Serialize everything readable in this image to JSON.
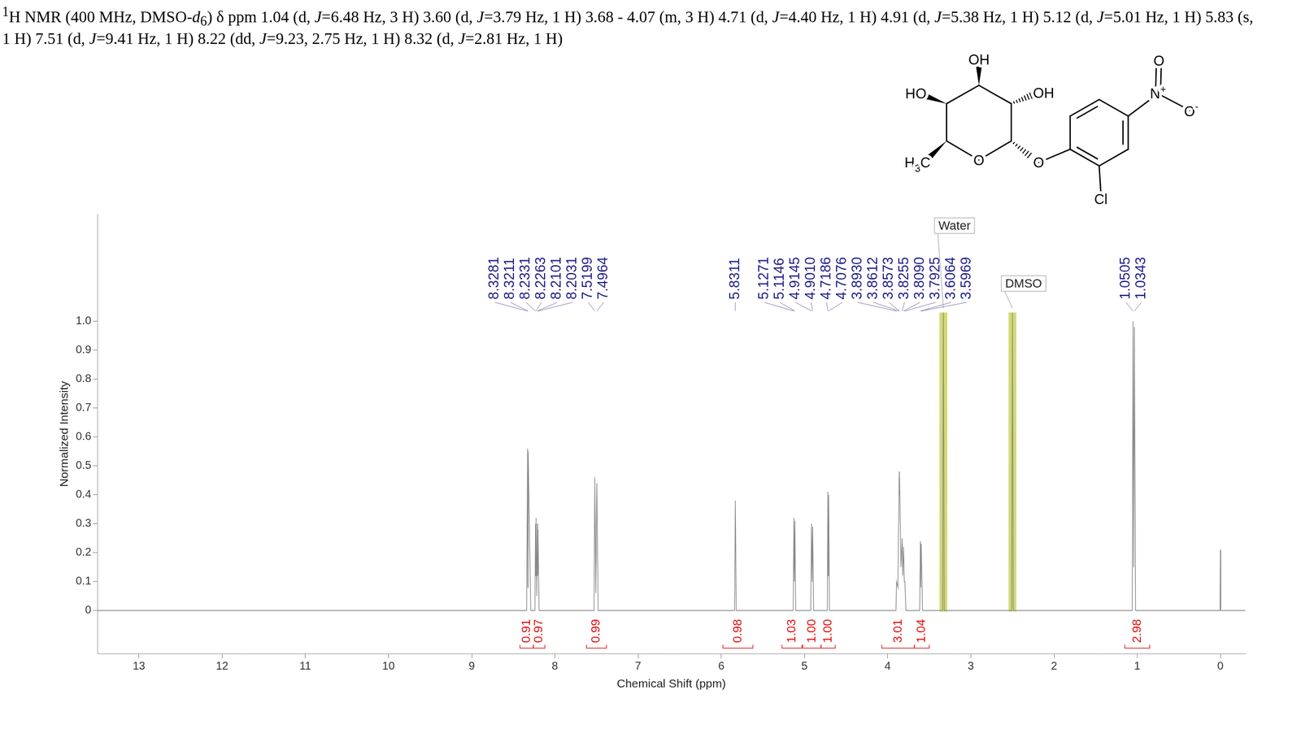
{
  "header": [
    {
      "sup": "1"
    },
    "H NMR (400 MHz, DMSO-",
    {
      "i": "d"
    },
    {
      "sub": "6"
    },
    ") δ ppm 1.04 (d, ",
    {
      "i": "J"
    },
    "=6.48 Hz, 3 H) 3.60 (d, ",
    {
      "i": "J"
    },
    "=3.79 Hz, 1 H) 3.68 - 4.07 (m, 3 H) 4.71 (d, ",
    {
      "i": "J"
    },
    "=4.40 Hz, 1 H) 4.91 (d, ",
    {
      "i": "J"
    },
    "=5.38 Hz, 1 H) 5.12 (d, ",
    {
      "i": "J"
    },
    "=5.01 Hz, 1 H) 5.83 (s, 1 H) 7.51 (d, ",
    {
      "i": "J"
    },
    "=9.41 Hz, 1 H) 8.22 (dd, ",
    {
      "i": "J"
    },
    "=9.23, 2.75 Hz, 1 H) 8.32 (d, ",
    {
      "i": "J"
    },
    "=2.81 Hz, 1 H)"
  ],
  "molecule": {
    "labels": [
      [
        "OH"
      ],
      [
        "HO"
      ],
      [
        "OH"
      ],
      [
        "H",
        {
          "sub": "3"
        },
        "C"
      ],
      [
        "O"
      ],
      [
        "O"
      ],
      [
        "N",
        {
          "sup": "+"
        }
      ],
      [
        "O"
      ],
      [
        "O",
        {
          "sup": "-"
        }
      ],
      [
        "Cl"
      ]
    ]
  },
  "chart_data": {
    "type": "line",
    "x_label": "Chemical Shift (ppm)",
    "y_label": "Normalized Intensity",
    "color": "#8a8a8a",
    "x": [
      13.5,
      8.34,
      8.328,
      8.3245,
      8.321,
      8.29,
      8.24,
      8.233,
      8.2297,
      8.226,
      8.218,
      8.21,
      8.2066,
      8.203,
      8.19,
      7.53,
      7.52,
      7.508,
      7.496,
      7.48,
      5.84,
      5.831,
      5.82,
      5.135,
      5.127,
      5.121,
      5.115,
      5.105,
      4.925,
      4.915,
      4.908,
      4.901,
      4.89,
      4.725,
      4.719,
      4.713,
      4.708,
      4.7,
      3.9,
      3.893,
      3.877,
      3.861,
      3.859,
      3.857,
      3.84,
      3.826,
      3.818,
      3.809,
      3.8,
      3.793,
      3.78,
      3.615,
      3.606,
      3.6015,
      3.597,
      3.58,
      3.34,
      3.33,
      3.32,
      2.51,
      2.5,
      2.49,
      1.06,
      1.0505,
      1.042,
      1.0343,
      1.02,
      0.005,
      0.0,
      -0.005,
      -0.3
    ],
    "values": [
      0,
      0,
      0.56,
      0.08,
      0.55,
      0,
      0,
      0.3,
      0.12,
      0.32,
      0.05,
      0.3,
      0.12,
      0.28,
      0,
      0,
      0.46,
      0.06,
      0.44,
      0,
      0,
      0.38,
      0,
      0,
      0.32,
      0.1,
      0.31,
      0,
      0,
      0.3,
      0.1,
      0.29,
      0,
      0,
      0.41,
      0.12,
      0.4,
      0,
      0,
      0.1,
      0.08,
      0.48,
      0.4,
      0.46,
      0.15,
      0.25,
      0.12,
      0.22,
      0.1,
      0.1,
      0,
      0,
      0.24,
      0.08,
      0.23,
      0,
      0,
      1.03,
      0,
      0,
      1.03,
      0,
      0,
      1.0,
      0.15,
      0.98,
      0,
      0,
      0.21,
      0,
      0
    ],
    "xlim": [
      13.5,
      -0.3
    ],
    "xticks": [
      13,
      12,
      11,
      10,
      9,
      8,
      7,
      6,
      5,
      4,
      3,
      2,
      1,
      0
    ],
    "ylim": [
      -0.15,
      1.37
    ],
    "yticks": [
      0,
      0.1,
      0.2,
      0.3,
      0.4,
      0.5,
      0.6,
      0.7,
      0.8,
      0.9,
      {
        "value": 1,
        "label": "1.0"
      }
    ],
    "grid": false,
    "peak_labels": [
      8.3281,
      8.3211,
      8.2331,
      8.2263,
      8.2101,
      8.2031,
      7.5199,
      7.4964,
      5.8311,
      5.1271,
      5.1146,
      4.9145,
      {
        "value": 4.901,
        "label": "4.9010"
      },
      4.7186,
      4.7076,
      {
        "value": 3.893,
        "label": "3.8930"
      },
      3.8612,
      3.8573,
      3.8255,
      {
        "value": 3.809,
        "label": "3.8090"
      },
      3.7925,
      3.6064,
      3.5969,
      1.0505,
      1.0343
    ],
    "integrals": [
      {
        "from": 8.42,
        "to": 8.26,
        "value": 0.91
      },
      {
        "from": 8.26,
        "to": 8.12,
        "value": 0.97
      },
      {
        "from": 7.62,
        "to": 7.38,
        "value": 0.99
      },
      {
        "from": 5.98,
        "to": 5.62,
        "value": 0.98
      },
      {
        "from": 5.27,
        "to": 5.03,
        "value": 1.03
      },
      {
        "from": 5.02,
        "to": 4.8,
        "value": 1,
        "label": "1.00"
      },
      {
        "from": 4.8,
        "to": 4.63,
        "value": 1,
        "label": "1.00"
      },
      {
        "from": 4.07,
        "to": 3.68,
        "value": 3.01
      },
      {
        "from": 3.68,
        "to": 3.5,
        "value": 1.04
      },
      {
        "from": 1.15,
        "to": 0.85,
        "value": 2.98
      }
    ],
    "annotations": [
      {
        "text": "Water",
        "x": 3.33
      },
      {
        "text": "DMSO",
        "x": 2.5
      }
    ]
  }
}
